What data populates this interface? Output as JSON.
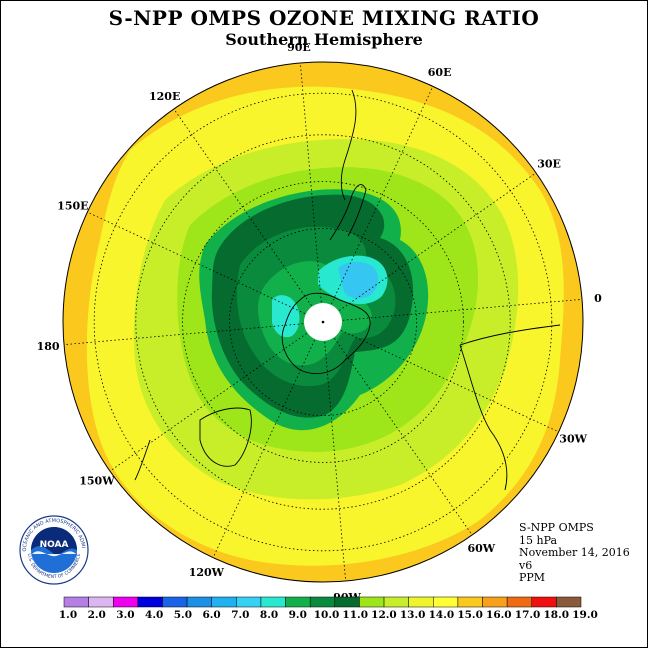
{
  "title": "S-NPP OMPS OZONE MIXING RATIO",
  "subtitle": "Southern Hemisphere",
  "longitude_labels": [
    {
      "text": "90W",
      "lon": -90
    },
    {
      "text": "60W",
      "lon": -60
    },
    {
      "text": "30W",
      "lon": -30
    },
    {
      "text": "0",
      "lon": 0
    },
    {
      "text": "30E",
      "lon": 30
    },
    {
      "text": "60E",
      "lon": 60
    },
    {
      "text": "90E",
      "lon": 90
    },
    {
      "text": "120E",
      "lon": 120
    },
    {
      "text": "150E",
      "lon": 150
    },
    {
      "text": "180",
      "lon": 180
    },
    {
      "text": "150W",
      "lon": -150
    },
    {
      "text": "120W",
      "lon": -120
    }
  ],
  "info": {
    "instrument": "S-NPP OMPS",
    "level": "15 hPa",
    "date": "November 14, 2016",
    "version": "v6",
    "units": "PPM"
  },
  "logo": {
    "text": "NOAA",
    "ring_text": "NATIONAL OCEANIC AND ATMOSPHERIC ADMINISTRATION",
    "ring_text_bottom": "U.S. DEPARTMENT OF COMMERCE"
  },
  "colorbar": {
    "labels": [
      "1.0",
      "2.0",
      "3.0",
      "4.0",
      "5.0",
      "6.0",
      "7.0",
      "8.0",
      "9.0",
      "10.0",
      "11.0",
      "12.0",
      "13.0",
      "14.0",
      "15.0",
      "16.0",
      "17.0",
      "18.0",
      "19.0"
    ],
    "colors": [
      "#b57fe6",
      "#dcb6f0",
      "#ee00ee",
      "#0000dd",
      "#1a63e6",
      "#1c8fe6",
      "#1fb1f0",
      "#35d2f5",
      "#29e8d0",
      "#12b04a",
      "#098a3c",
      "#066b2e",
      "#9ee619",
      "#c8ee2a",
      "#f0f52b",
      "#ffff33",
      "#fbc81e",
      "#f7a01a",
      "#f06a14",
      "#f01010",
      "#8a5a3a"
    ]
  },
  "map": {
    "projection": "south polar stereographic",
    "contour_levels_ppm": [
      8.0,
      9.0,
      10.0,
      11.0,
      12.0,
      13.0,
      14.0,
      15.0
    ]
  }
}
